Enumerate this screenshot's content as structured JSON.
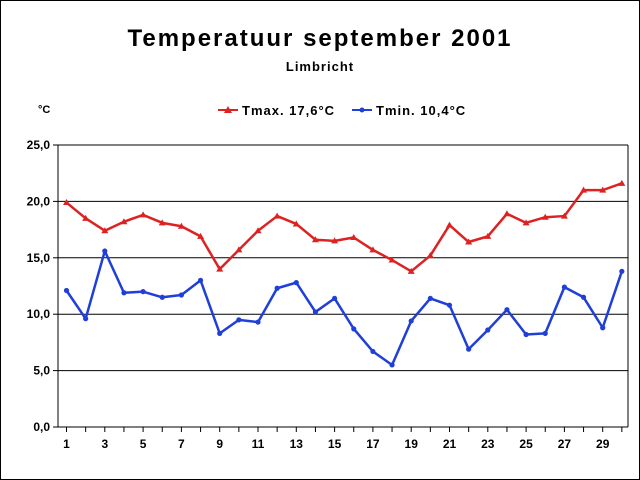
{
  "chart_data": {
    "type": "line",
    "title": "Temperatuur september 2001",
    "subtitle": "Limbricht",
    "ylabel": "°C",
    "xlabel": "",
    "ylim": [
      0,
      25
    ],
    "xlim": [
      1,
      30
    ],
    "yticks": [
      "0,0",
      "5,0",
      "10,0",
      "15,0",
      "20,0",
      "25,0"
    ],
    "xticks": [
      "1",
      "3",
      "5",
      "7",
      "9",
      "11",
      "13",
      "15",
      "17",
      "19",
      "21",
      "23",
      "25",
      "27",
      "29"
    ],
    "grid": "horizontal",
    "legend_position": "top-right",
    "x": [
      1,
      2,
      3,
      4,
      5,
      6,
      7,
      8,
      9,
      10,
      11,
      12,
      13,
      14,
      15,
      16,
      17,
      18,
      19,
      20,
      21,
      22,
      23,
      24,
      25,
      26,
      27,
      28,
      29,
      30
    ],
    "series": [
      {
        "name": "Tmax. 17,6°C",
        "color": "#dd2222",
        "marker": "triangle",
        "values": [
          19.9,
          18.5,
          17.4,
          18.2,
          18.8,
          18.1,
          17.8,
          16.9,
          14.0,
          15.7,
          17.4,
          18.7,
          18.0,
          16.6,
          16.5,
          16.8,
          15.7,
          14.8,
          13.8,
          15.2,
          17.9,
          16.4,
          16.9,
          18.9,
          18.1,
          18.6,
          18.7,
          21.0,
          21.0,
          21.6
        ]
      },
      {
        "name": "Tmin. 10,4°C",
        "color": "#1f3fd8",
        "marker": "circle",
        "values": [
          12.1,
          9.6,
          15.6,
          11.9,
          12.0,
          11.5,
          11.7,
          13.0,
          8.3,
          9.5,
          9.3,
          12.3,
          12.8,
          10.2,
          11.4,
          8.7,
          6.7,
          5.5,
          9.4,
          11.4,
          10.8,
          6.9,
          8.6,
          10.4,
          8.2,
          8.3,
          12.4,
          11.5,
          8.8,
          13.8
        ]
      }
    ]
  }
}
